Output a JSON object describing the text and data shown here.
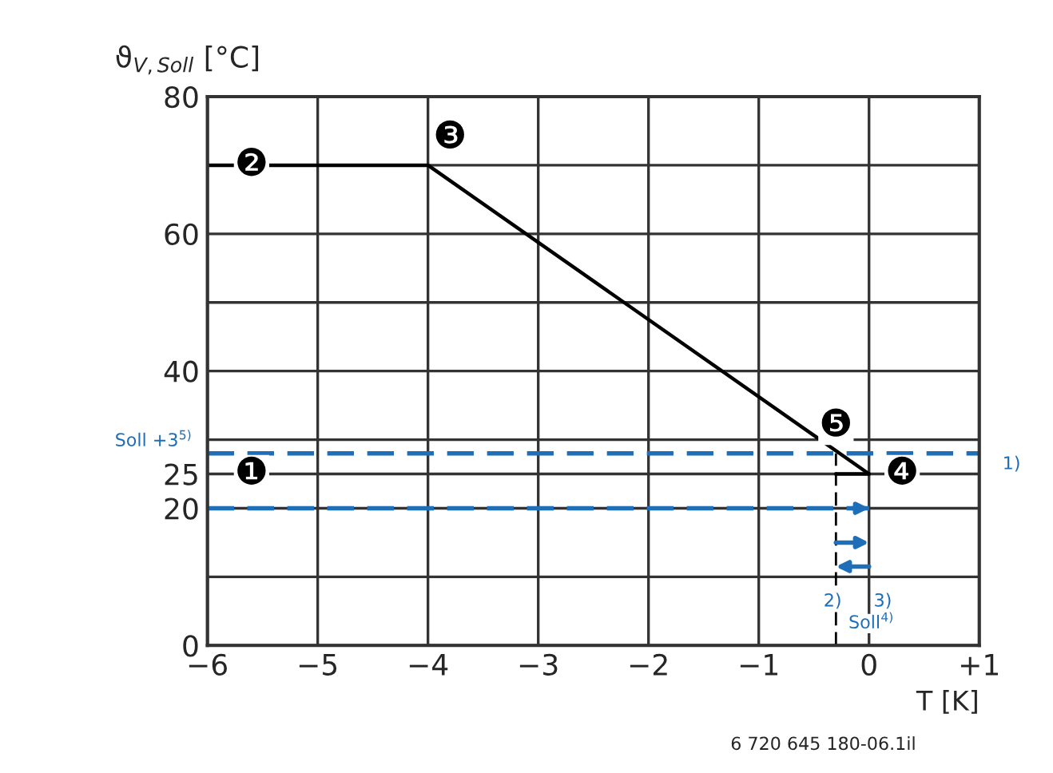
{
  "chart_data": {
    "type": "line",
    "xlabel": "T [K]",
    "ylabel": "ϑ$_{V,Soll}$ [°C]",
    "series": [
      {
        "color": "#000000",
        "x": [
          -6,
          -4,
          0
        ],
        "values": [
          70,
          70,
          25
        ]
      },
      {
        "color": "#000000",
        "x": [
          -0.3,
          0
        ],
        "values": [
          25,
          25
        ]
      }
    ],
    "xlim": [
      -6,
      1
    ],
    "xticks": [
      {
        "value": -6,
        "label": "−6"
      },
      {
        "value": -5,
        "label": "−5"
      },
      {
        "value": -4,
        "label": "−4"
      },
      {
        "value": -3,
        "label": "−3"
      },
      {
        "value": -2,
        "label": "−2"
      },
      {
        "value": -1,
        "label": "−1"
      },
      0,
      {
        "value": 1,
        "label": "+1"
      }
    ],
    "ylim": [
      0,
      80
    ],
    "yticks": [
      0,
      {
        "value": 10,
        "label": null
      },
      20,
      25,
      {
        "value": 30,
        "label": null
      },
      40,
      {
        "value": 50,
        "label": null
      },
      60,
      {
        "value": 70,
        "label": null
      },
      80
    ],
    "grid": true,
    "line_style": "solid",
    "marker": "none",
    "ref_lines": [
      {
        "axis": "y",
        "value": 28,
        "label": "Soll +3$^{5)}$",
        "color": "#1f6fb8",
        "line_style": "dashed"
      },
      {
        "axis": "y",
        "value": 20,
        "color": "#1f6fb8",
        "line_style": "dashed"
      },
      {
        "axis": "x",
        "value": -0.3,
        "color": "#000000",
        "line_style": "dashed"
      }
    ],
    "annotations": [
      {
        "text": "❶",
        "x": -5.6,
        "y": 25
      },
      {
        "text": "❷",
        "x": -5.6,
        "y": 70
      },
      {
        "text": "❸",
        "x": -3.8,
        "y": 74
      },
      {
        "text": "❹",
        "x": 0.3,
        "y": 25
      },
      {
        "text": "❺",
        "x": -0.3,
        "y": 32
      },
      "1)",
      "2)",
      "3)",
      "Soll$^{4)}$",
      "6 720 645 180-06.1il"
    ]
  }
}
